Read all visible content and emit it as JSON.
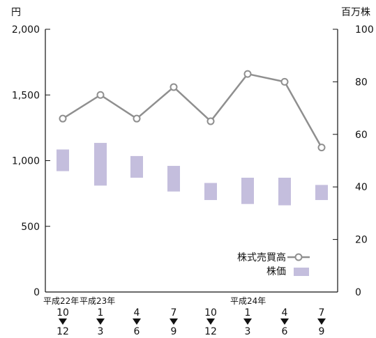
{
  "chart_data": {
    "type": "bar+line",
    "title": "",
    "left_axis": {
      "unit": "円",
      "ylim": [
        0,
        2000
      ],
      "ticks": [
        0,
        500,
        1000,
        1500,
        2000
      ],
      "tick_labels": [
        "0",
        "500",
        "1,000",
        "1,500",
        "2,000"
      ]
    },
    "right_axis": {
      "unit": "百万株",
      "ylim": [
        0,
        100
      ],
      "ticks": [
        0,
        20,
        40,
        60,
        80,
        100
      ],
      "tick_labels": [
        "0",
        "20",
        "40",
        "60",
        "80",
        "100"
      ]
    },
    "periods": [
      {
        "start_month": "10",
        "end_month": "12"
      },
      {
        "start_month": "1",
        "end_month": "3"
      },
      {
        "start_month": "4",
        "end_month": "6"
      },
      {
        "start_month": "7",
        "end_month": "9"
      },
      {
        "start_month": "10",
        "end_month": "12"
      },
      {
        "start_month": "1",
        "end_month": "3"
      },
      {
        "start_month": "4",
        "end_month": "6"
      },
      {
        "start_month": "7",
        "end_month": "9"
      }
    ],
    "year_labels": [
      {
        "label": "平成22年",
        "period_index": 0
      },
      {
        "label": "平成23年",
        "period_index": 1
      },
      {
        "label": "平成24年",
        "period_index": 5
      }
    ],
    "series": [
      {
        "name": "株式売買高",
        "kind": "line",
        "axis": "right",
        "color": "#8f8f8f",
        "values": [
          66,
          75,
          66,
          78,
          65,
          83,
          80,
          55
        ]
      },
      {
        "name": "株価",
        "kind": "range-bar",
        "axis": "left",
        "color": "#c4bedd",
        "ranges": [
          [
            920,
            1085
          ],
          [
            810,
            1135
          ],
          [
            870,
            1035
          ],
          [
            765,
            960
          ],
          [
            700,
            830
          ],
          [
            670,
            870
          ],
          [
            660,
            870
          ],
          [
            700,
            815
          ]
        ]
      }
    ],
    "legend": {
      "placement": "bottom-right"
    }
  }
}
